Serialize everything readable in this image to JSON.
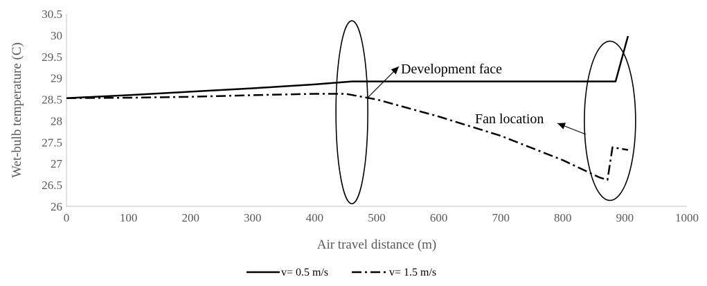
{
  "chart_data": {
    "type": "line",
    "title": "",
    "xlabel": "Air travel distance (m)",
    "ylabel": "Wet-bulb temperature (C)",
    "xlim": [
      0,
      1000
    ],
    "ylim": [
      26,
      30.5
    ],
    "xticks": [
      0,
      100,
      200,
      300,
      400,
      500,
      600,
      700,
      800,
      900,
      1000
    ],
    "yticks": [
      "26",
      "26.5",
      "27",
      "27.5",
      "28",
      "28.5",
      "29",
      "29.5",
      "30",
      "30.5"
    ],
    "grid": false,
    "legend_position": "bottom",
    "series": [
      {
        "name": "v= 0.5 m/s",
        "style": "solid",
        "color": "#000000",
        "points": [
          [
            0,
            28.53
          ],
          [
            100,
            28.6
          ],
          [
            200,
            28.68
          ],
          [
            300,
            28.76
          ],
          [
            400,
            28.85
          ],
          [
            460,
            28.92
          ],
          [
            500,
            28.92
          ],
          [
            600,
            28.92
          ],
          [
            700,
            28.92
          ],
          [
            800,
            28.92
          ],
          [
            885,
            28.92
          ],
          [
            905,
            29.98
          ]
        ]
      },
      {
        "name": "v= 1.5 m/s",
        "style": "dash-dot",
        "color": "#000000",
        "points": [
          [
            0,
            28.53
          ],
          [
            100,
            28.54
          ],
          [
            200,
            28.56
          ],
          [
            300,
            28.6
          ],
          [
            400,
            28.63
          ],
          [
            450,
            28.63
          ],
          [
            500,
            28.5
          ],
          [
            600,
            28.1
          ],
          [
            700,
            27.65
          ],
          [
            800,
            27.08
          ],
          [
            860,
            26.67
          ],
          [
            872,
            26.62
          ],
          [
            880,
            27.38
          ],
          [
            905,
            27.32
          ]
        ]
      }
    ],
    "annotations": [
      {
        "text": "Development face",
        "marks": "x≈460 (end of v= 0.5 m/s ramp)"
      },
      {
        "text": "Fan location",
        "marks": "x≈870 (jump in both series)"
      }
    ]
  }
}
